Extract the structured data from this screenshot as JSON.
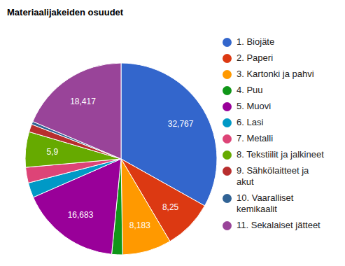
{
  "chart_data": {
    "type": "pie",
    "title": "Materiaalijakeiden osuudet",
    "categories": [
      "1. Biojäte",
      "2. Paperi",
      "3. Kartonki ja pahvi",
      "4. Puu",
      "5. Muovi",
      "6. Lasi",
      "7. Metalli",
      "8. Tekstiilit ja jalkineet",
      "9. Sähkölaitteet ja akut",
      "10. Vaaralliset kemikaalit",
      "11. Sekalaiset jätteet"
    ],
    "values": [
      32.767,
      8.25,
      8.183,
      1.8,
      16.683,
      2.5,
      2.6,
      5.9,
      1.3,
      0.5,
      18.417
    ],
    "value_labels": [
      "32,767",
      "8,25",
      "8,183",
      null,
      "16,683",
      null,
      null,
      "5,9",
      null,
      null,
      "18,417"
    ],
    "data_labels": true,
    "legend": "right",
    "colors": [
      "#3366cc",
      "#dc3912",
      "#ff9900",
      "#109618",
      "#990099",
      "#0099c6",
      "#dd4477",
      "#66aa00",
      "#b82e2e",
      "#316395",
      "#994499"
    ]
  }
}
